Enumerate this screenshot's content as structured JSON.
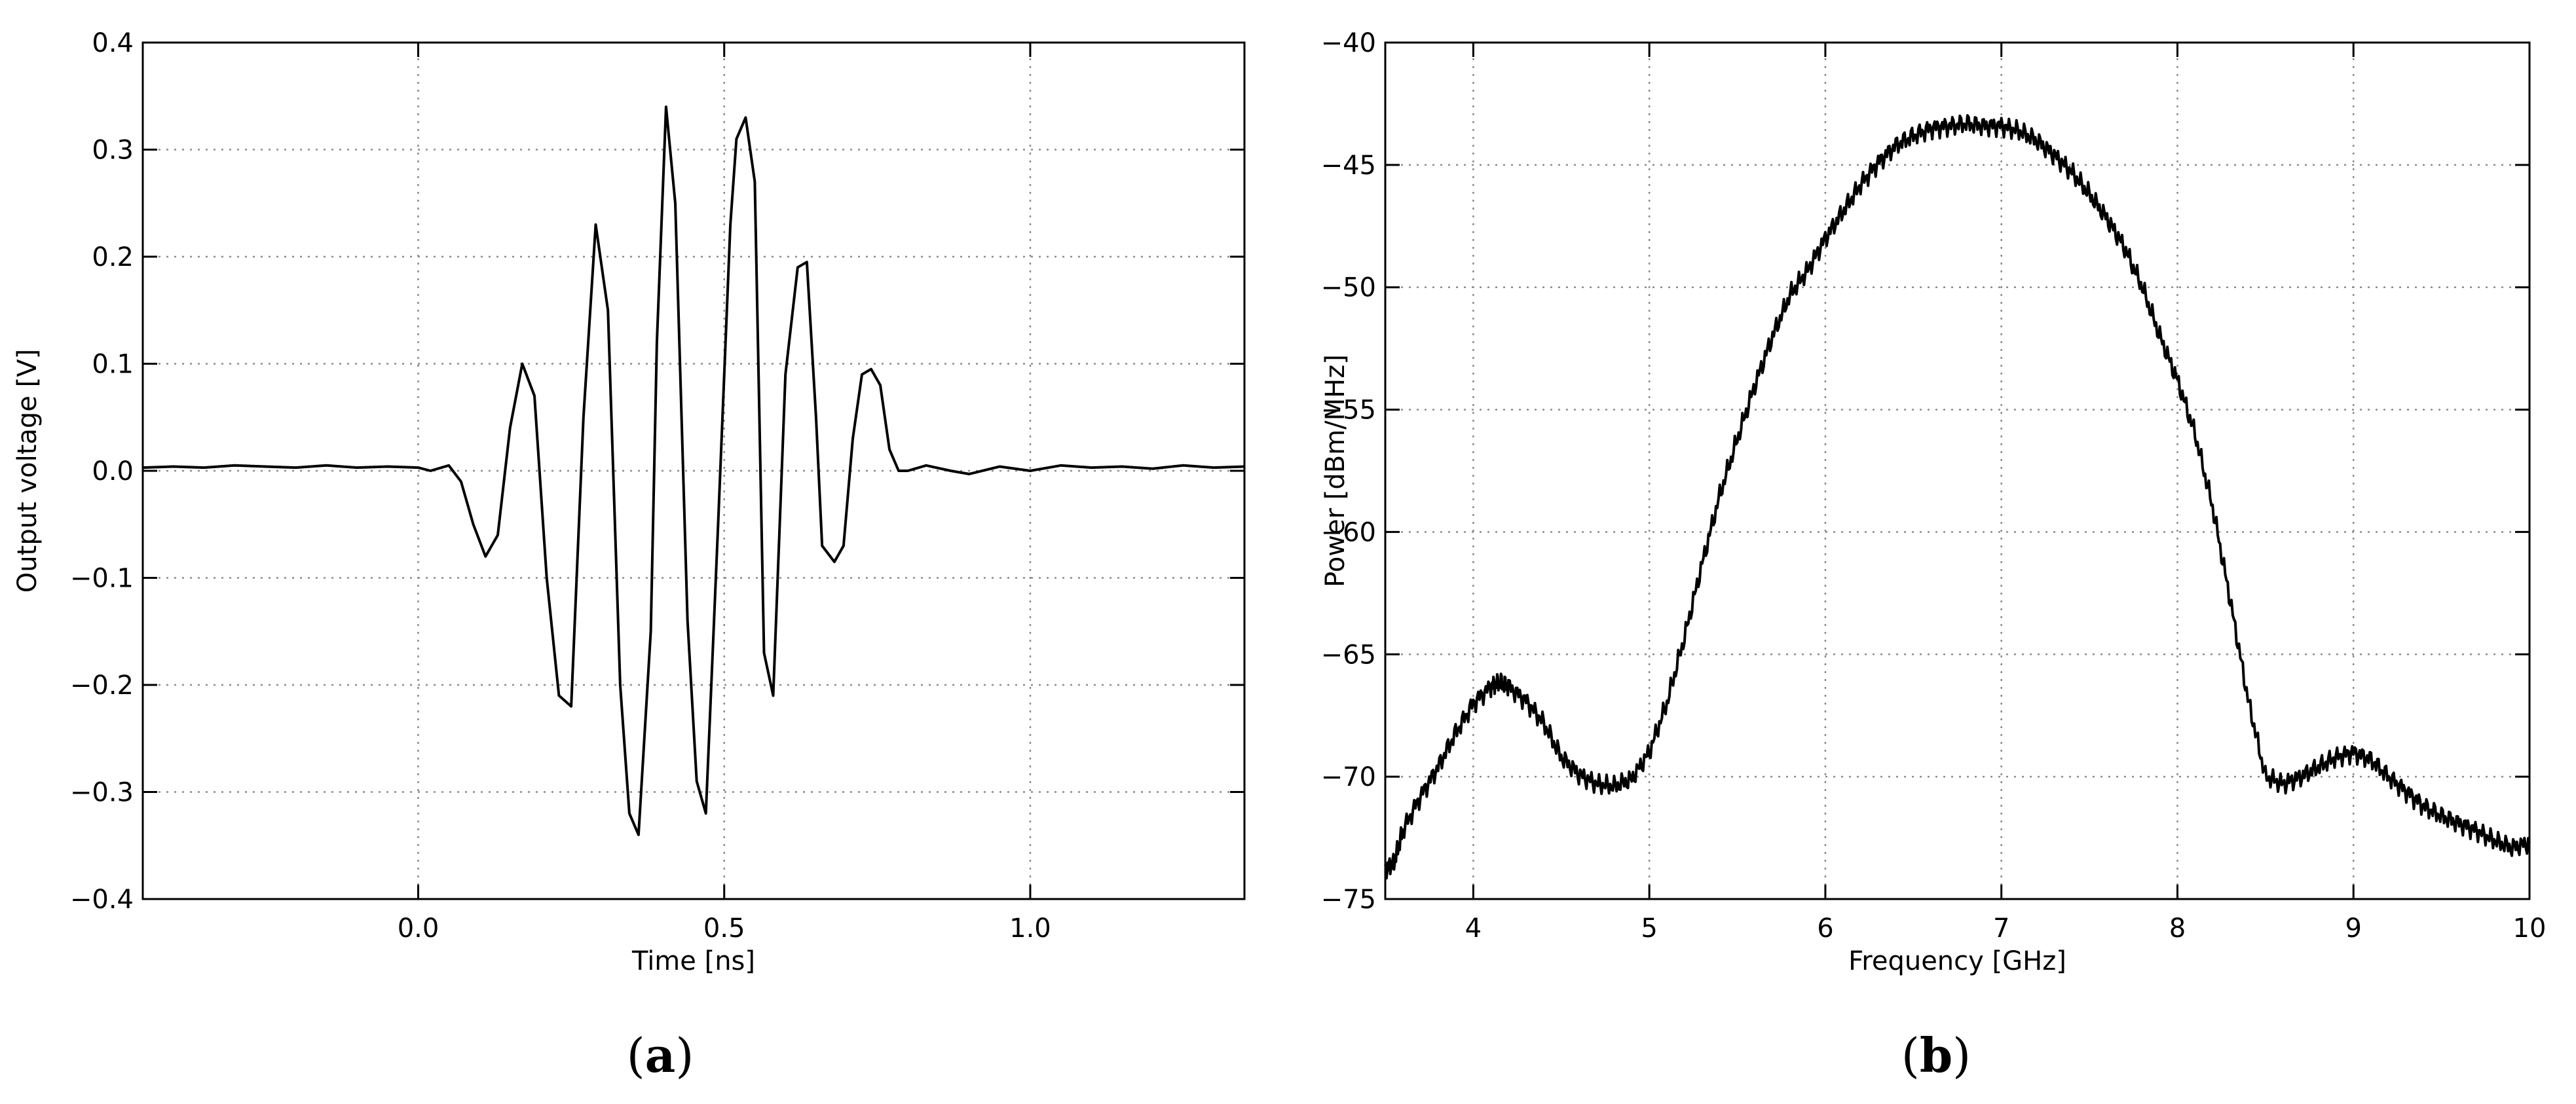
{
  "chart_data": [
    {
      "panel": "(a)",
      "type": "line",
      "xlabel": "Time [ns]",
      "ylabel": "Output voltage [V]",
      "xlim": [
        -0.45,
        1.35
      ],
      "ylim": [
        -0.4,
        0.4
      ],
      "xticks": [
        0.0,
        0.5,
        1.0
      ],
      "xtick_labels": [
        "0.0",
        "0.5",
        "1.0"
      ],
      "yticks": [
        -0.4,
        -0.3,
        -0.2,
        -0.1,
        0.0,
        0.1,
        0.2,
        0.3,
        0.4
      ],
      "ytick_labels": [
        "−0.4",
        "−0.3",
        "−0.2",
        "−0.1",
        "0.0",
        "0.1",
        "0.2",
        "0.3",
        "0.4"
      ],
      "grid": true,
      "series": [
        {
          "color": "#000000",
          "x": [
            -0.45,
            -0.4,
            -0.35,
            -0.3,
            -0.25,
            -0.2,
            -0.15,
            -0.1,
            -0.05,
            0.0,
            0.02,
            0.05,
            0.07,
            0.09,
            0.11,
            0.13,
            0.15,
            0.17,
            0.19,
            0.21,
            0.23,
            0.25,
            0.27,
            0.29,
            0.31,
            0.33,
            0.345,
            0.36,
            0.38,
            0.39,
            0.405,
            0.42,
            0.44,
            0.455,
            0.47,
            0.49,
            0.51,
            0.52,
            0.535,
            0.55,
            0.565,
            0.58,
            0.6,
            0.62,
            0.635,
            0.65,
            0.66,
            0.68,
            0.695,
            0.71,
            0.725,
            0.74,
            0.755,
            0.77,
            0.785,
            0.8,
            0.83,
            0.87,
            0.9,
            0.95,
            1.0,
            1.05,
            1.1,
            1.15,
            1.2,
            1.25,
            1.3,
            1.35
          ],
          "y": [
            0.003,
            0.004,
            0.003,
            0.005,
            0.004,
            0.003,
            0.005,
            0.003,
            0.004,
            0.003,
            0.0,
            0.005,
            -0.01,
            -0.05,
            -0.08,
            -0.06,
            0.04,
            0.1,
            0.07,
            -0.1,
            -0.21,
            -0.22,
            0.05,
            0.23,
            0.15,
            -0.2,
            -0.32,
            -0.34,
            -0.15,
            0.12,
            0.34,
            0.25,
            -0.14,
            -0.29,
            -0.32,
            -0.05,
            0.23,
            0.31,
            0.33,
            0.27,
            -0.17,
            -0.21,
            0.09,
            0.19,
            0.195,
            0.05,
            -0.07,
            -0.085,
            -0.07,
            0.03,
            0.09,
            0.095,
            0.08,
            0.02,
            0.0,
            0.0,
            0.005,
            0.0,
            -0.003,
            0.004,
            0.0,
            0.005,
            0.003,
            0.004,
            0.002,
            0.005,
            0.003,
            0.004
          ]
        }
      ]
    },
    {
      "panel": "(b)",
      "type": "line",
      "xlabel": "Frequency [GHz]",
      "ylabel": "Power [dBm/MHz]",
      "xlim": [
        3.5,
        10
      ],
      "ylim": [
        -75,
        -40
      ],
      "xticks": [
        4,
        5,
        6,
        7,
        8,
        9,
        10
      ],
      "xtick_labels": [
        "4",
        "5",
        "6",
        "7",
        "8",
        "9",
        "10"
      ],
      "yticks": [
        -75,
        -70,
        -65,
        -60,
        -55,
        -50,
        -45,
        -40
      ],
      "ytick_labels": [
        "−75",
        "−70",
        "−65",
        "−60",
        "−55",
        "−50",
        "−45",
        "−40"
      ],
      "grid": true,
      "series": [
        {
          "color": "#000000",
          "x": [
            3.5,
            3.55,
            3.6,
            3.7,
            3.8,
            3.9,
            4.0,
            4.1,
            4.15,
            4.2,
            4.3,
            4.4,
            4.5,
            4.6,
            4.7,
            4.8,
            4.9,
            5.0,
            5.1,
            5.2,
            5.3,
            5.4,
            5.5,
            5.6,
            5.7,
            5.8,
            5.9,
            6.0,
            6.1,
            6.2,
            6.3,
            6.4,
            6.5,
            6.6,
            6.7,
            6.8,
            6.9,
            7.0,
            7.1,
            7.2,
            7.3,
            7.4,
            7.5,
            7.6,
            7.7,
            7.8,
            7.9,
            8.0,
            8.1,
            8.2,
            8.3,
            8.4,
            8.5,
            8.6,
            8.7,
            8.8,
            8.9,
            9.0,
            9.1,
            9.2,
            9.3,
            9.4,
            9.5,
            9.6,
            9.7,
            9.8,
            9.9,
            10.0
          ],
          "y": [
            -73.8,
            -73.5,
            -72.2,
            -70.8,
            -69.6,
            -68.2,
            -67.0,
            -66.3,
            -66.1,
            -66.3,
            -66.9,
            -67.8,
            -69.2,
            -69.9,
            -70.3,
            -70.4,
            -70.1,
            -69.0,
            -67.0,
            -64.3,
            -61.3,
            -58.5,
            -56.2,
            -54.0,
            -52.0,
            -50.3,
            -49.3,
            -48.0,
            -46.9,
            -45.8,
            -44.9,
            -44.2,
            -43.8,
            -43.5,
            -43.4,
            -43.3,
            -43.4,
            -43.4,
            -43.6,
            -44.0,
            -44.6,
            -45.3,
            -46.2,
            -47.2,
            -48.4,
            -50.0,
            -52.0,
            -53.8,
            -56.0,
            -59.0,
            -62.8,
            -66.8,
            -70.0,
            -70.3,
            -70.0,
            -69.6,
            -69.2,
            -69.0,
            -69.3,
            -70.0,
            -70.6,
            -71.2,
            -71.6,
            -71.9,
            -72.2,
            -72.6,
            -72.9,
            -72.7
          ]
        }
      ]
    }
  ]
}
